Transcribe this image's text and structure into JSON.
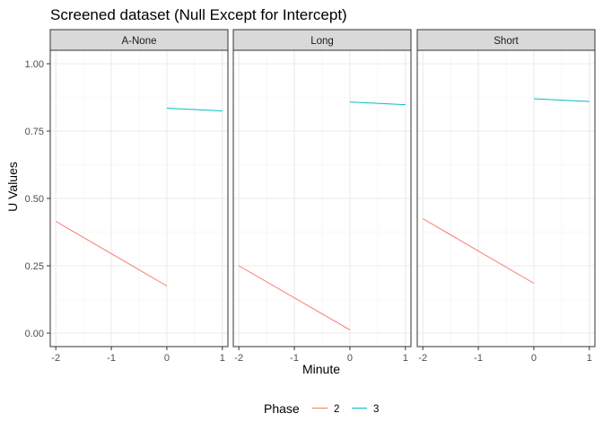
{
  "chart_data": {
    "type": "line",
    "title": "Screened dataset (Null Except for Intercept)",
    "xlabel": "Minute",
    "ylabel": "U Values",
    "xlim": [
      -2.1,
      1.1
    ],
    "ylim": [
      -0.05,
      1.05
    ],
    "x_ticks": [
      -2,
      -1,
      0,
      1
    ],
    "x_tick_labels": [
      "-2",
      "-1",
      "0",
      "1"
    ],
    "y_ticks": [
      0,
      0.25,
      0.5,
      0.75,
      1
    ],
    "y_tick_labels": [
      "0.00",
      "0.25",
      "0.50",
      "0.75",
      "1.00"
    ],
    "grid": true,
    "legend": {
      "title": "Phase",
      "position": "bottom",
      "entries": [
        "2",
        "3"
      ]
    },
    "colors": {
      "2": "#F8766D",
      "3": "#00BFC4"
    },
    "facets": [
      {
        "label": "A-None",
        "series": [
          {
            "name": "2",
            "x": [
              -2,
              0
            ],
            "y": [
              0.415,
              0.175
            ]
          },
          {
            "name": "3",
            "x": [
              0,
              1
            ],
            "y": [
              0.835,
              0.825
            ]
          }
        ]
      },
      {
        "label": "Long",
        "series": [
          {
            "name": "2",
            "x": [
              -2,
              0
            ],
            "y": [
              0.25,
              0.012
            ]
          },
          {
            "name": "3",
            "x": [
              0,
              1
            ],
            "y": [
              0.858,
              0.848
            ]
          }
        ]
      },
      {
        "label": "Short",
        "series": [
          {
            "name": "2",
            "x": [
              -2,
              0
            ],
            "y": [
              0.425,
              0.185
            ]
          },
          {
            "name": "3",
            "x": [
              0,
              1
            ],
            "y": [
              0.87,
              0.86
            ]
          }
        ]
      }
    ]
  }
}
